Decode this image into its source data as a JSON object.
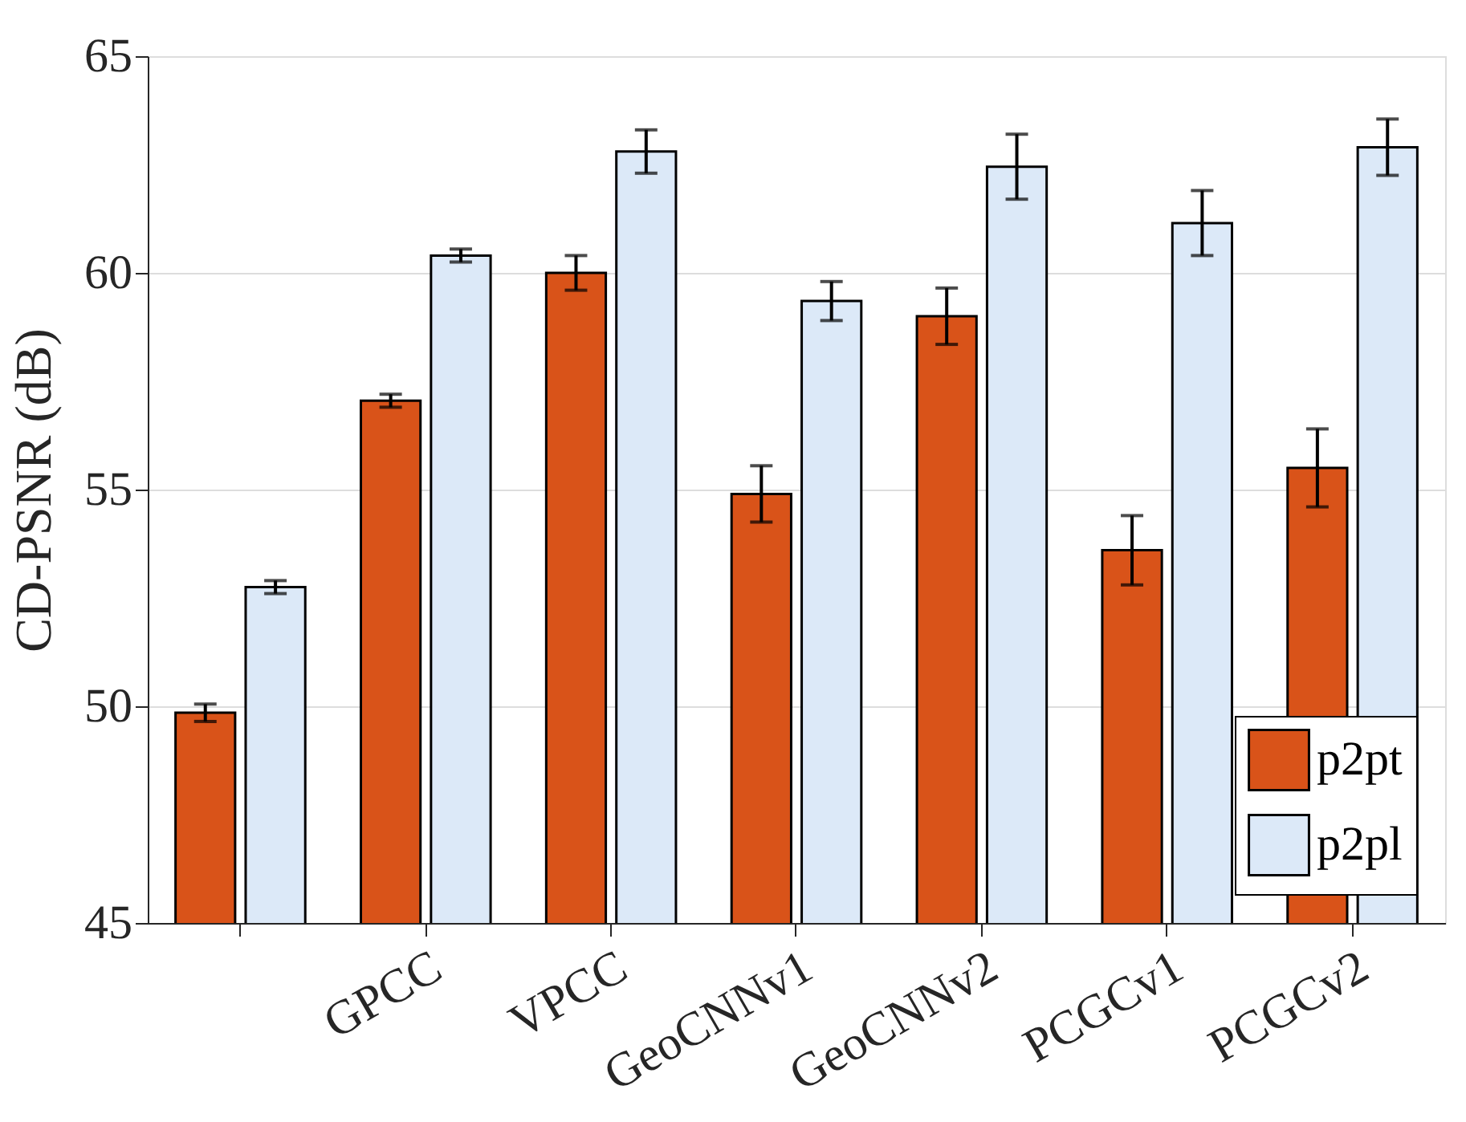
{
  "chart_data": {
    "type": "bar",
    "ylabel": "CD-PSNR (dB)",
    "categories": [
      null,
      "GPCC",
      "VPCC",
      "GeoCNNv1",
      "GeoCNNv2",
      "PCGCv1",
      "PCGCv2"
    ],
    "series": [
      {
        "name": "p2pt",
        "color": "#d95319",
        "values": [
          49.85,
          57.05,
          60.0,
          54.9,
          59.0,
          53.6,
          55.5
        ],
        "errors": [
          0.2,
          0.15,
          0.4,
          0.65,
          0.65,
          0.8,
          0.9
        ]
      },
      {
        "name": "p2pl",
        "color": "#dce9f8",
        "values": [
          52.75,
          60.4,
          62.8,
          59.35,
          62.45,
          61.15,
          62.9
        ],
        "errors": [
          0.15,
          0.15,
          0.5,
          0.45,
          0.75,
          0.75,
          0.65
        ]
      }
    ],
    "ylim": [
      45,
      65
    ],
    "yticks": [
      45,
      50,
      55,
      60,
      65
    ],
    "grid": "y",
    "legend": "bottom right"
  }
}
